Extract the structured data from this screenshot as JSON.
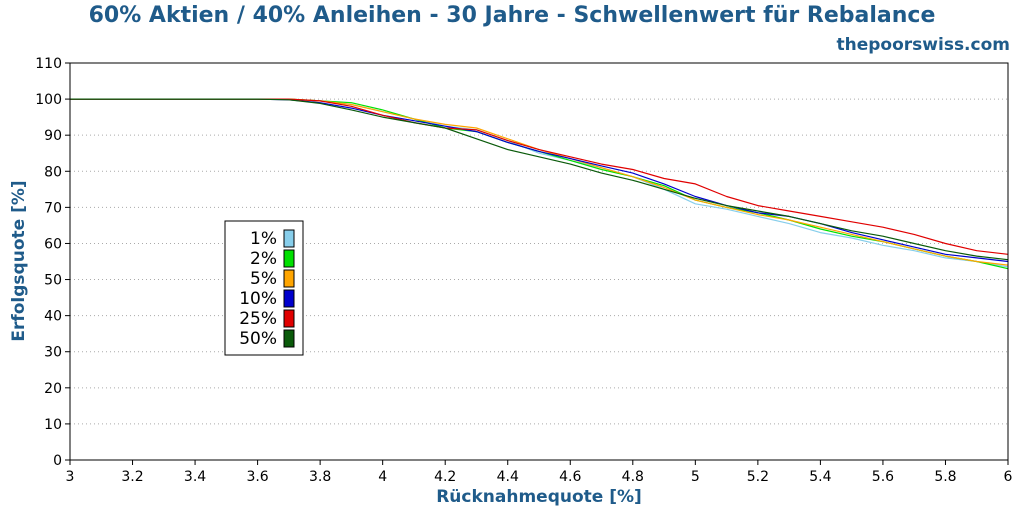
{
  "chart_data": {
    "type": "line",
    "title": "60% Aktien / 40% Anleihen - 30 Jahre - Schwellenwert für Rebalance",
    "subtitle": "thepoorswiss.com",
    "xlabel": "Rücknahmequote [%]",
    "ylabel": "Erfolgsquote [%]",
    "xlim": [
      3,
      6
    ],
    "ylim": [
      0,
      110
    ],
    "xticks": [
      "3",
      "3.2",
      "3.4",
      "3.6",
      "3.8",
      "4",
      "4.2",
      "4.4",
      "4.6",
      "4.8",
      "5",
      "5.2",
      "5.4",
      "5.6",
      "5.8",
      "6"
    ],
    "yticks": [
      "0",
      "10",
      "20",
      "30",
      "40",
      "50",
      "60",
      "70",
      "80",
      "90",
      "100",
      "110"
    ],
    "grid": "horizontal dotted",
    "legend_position": "left-middle",
    "x": [
      3.0,
      3.1,
      3.2,
      3.3,
      3.4,
      3.5,
      3.6,
      3.7,
      3.8,
      3.9,
      4.0,
      4.1,
      4.2,
      4.3,
      4.4,
      4.5,
      4.6,
      4.7,
      4.8,
      4.9,
      5.0,
      5.1,
      5.2,
      5.3,
      5.4,
      5.5,
      5.6,
      5.7,
      5.8,
      5.9,
      6.0
    ],
    "series": [
      {
        "name": "1%",
        "color": "#87ceeb",
        "values": [
          100,
          100,
          100,
          100,
          100,
          100,
          100,
          100,
          99.5,
          98.5,
          96.5,
          94.5,
          92.5,
          91.5,
          88.5,
          85,
          83,
          81,
          78.5,
          75,
          71,
          69.5,
          67.5,
          65.5,
          63,
          61.5,
          59.5,
          58,
          56,
          55,
          53.5
        ]
      },
      {
        "name": "2%",
        "color": "#00e000",
        "values": [
          100,
          100,
          100,
          100,
          100,
          100,
          100,
          100,
          99.5,
          99,
          97,
          94.5,
          92,
          91,
          88,
          85.5,
          83,
          80.5,
          78.5,
          76,
          72,
          70,
          68.5,
          66.5,
          64,
          62,
          60.5,
          58.5,
          56.5,
          55,
          53
        ]
      },
      {
        "name": "5%",
        "color": "#ffa500",
        "values": [
          100,
          100,
          100,
          100,
          100,
          100,
          100,
          100,
          99.5,
          98.5,
          96.5,
          94.5,
          93,
          92,
          89,
          86,
          83.5,
          81,
          78.5,
          75.5,
          72,
          70,
          68,
          66.5,
          64.5,
          62.5,
          60.5,
          58.5,
          56.5,
          55,
          54
        ]
      },
      {
        "name": "10%",
        "color": "#0000cd",
        "values": [
          100,
          100,
          100,
          100,
          100,
          100,
          100,
          99.8,
          99,
          97.5,
          95.5,
          94,
          92.5,
          91,
          88,
          85.5,
          83.5,
          81.5,
          79.5,
          76.5,
          73,
          70.5,
          68.5,
          67.5,
          65.5,
          63,
          61,
          59,
          57,
          56,
          55
        ]
      },
      {
        "name": "25%",
        "color": "#e00000",
        "values": [
          100,
          100,
          100,
          100,
          100,
          100,
          100,
          100,
          99.5,
          98,
          95.5,
          93.5,
          92,
          91.5,
          88.5,
          86,
          84,
          82,
          80.5,
          78,
          76.5,
          73,
          70.5,
          69,
          67.5,
          66,
          64.5,
          62.5,
          60,
          58,
          57
        ]
      },
      {
        "name": "50%",
        "color": "#0a5a0a",
        "values": [
          100,
          100,
          100,
          100,
          100,
          100,
          100,
          99.8,
          98.8,
          97,
          95,
          93.5,
          92,
          89,
          86,
          84,
          82,
          79.5,
          77.5,
          75,
          72.5,
          70.5,
          69,
          67.5,
          65.5,
          63.5,
          62,
          60,
          58,
          56.5,
          55.5
        ]
      }
    ]
  }
}
